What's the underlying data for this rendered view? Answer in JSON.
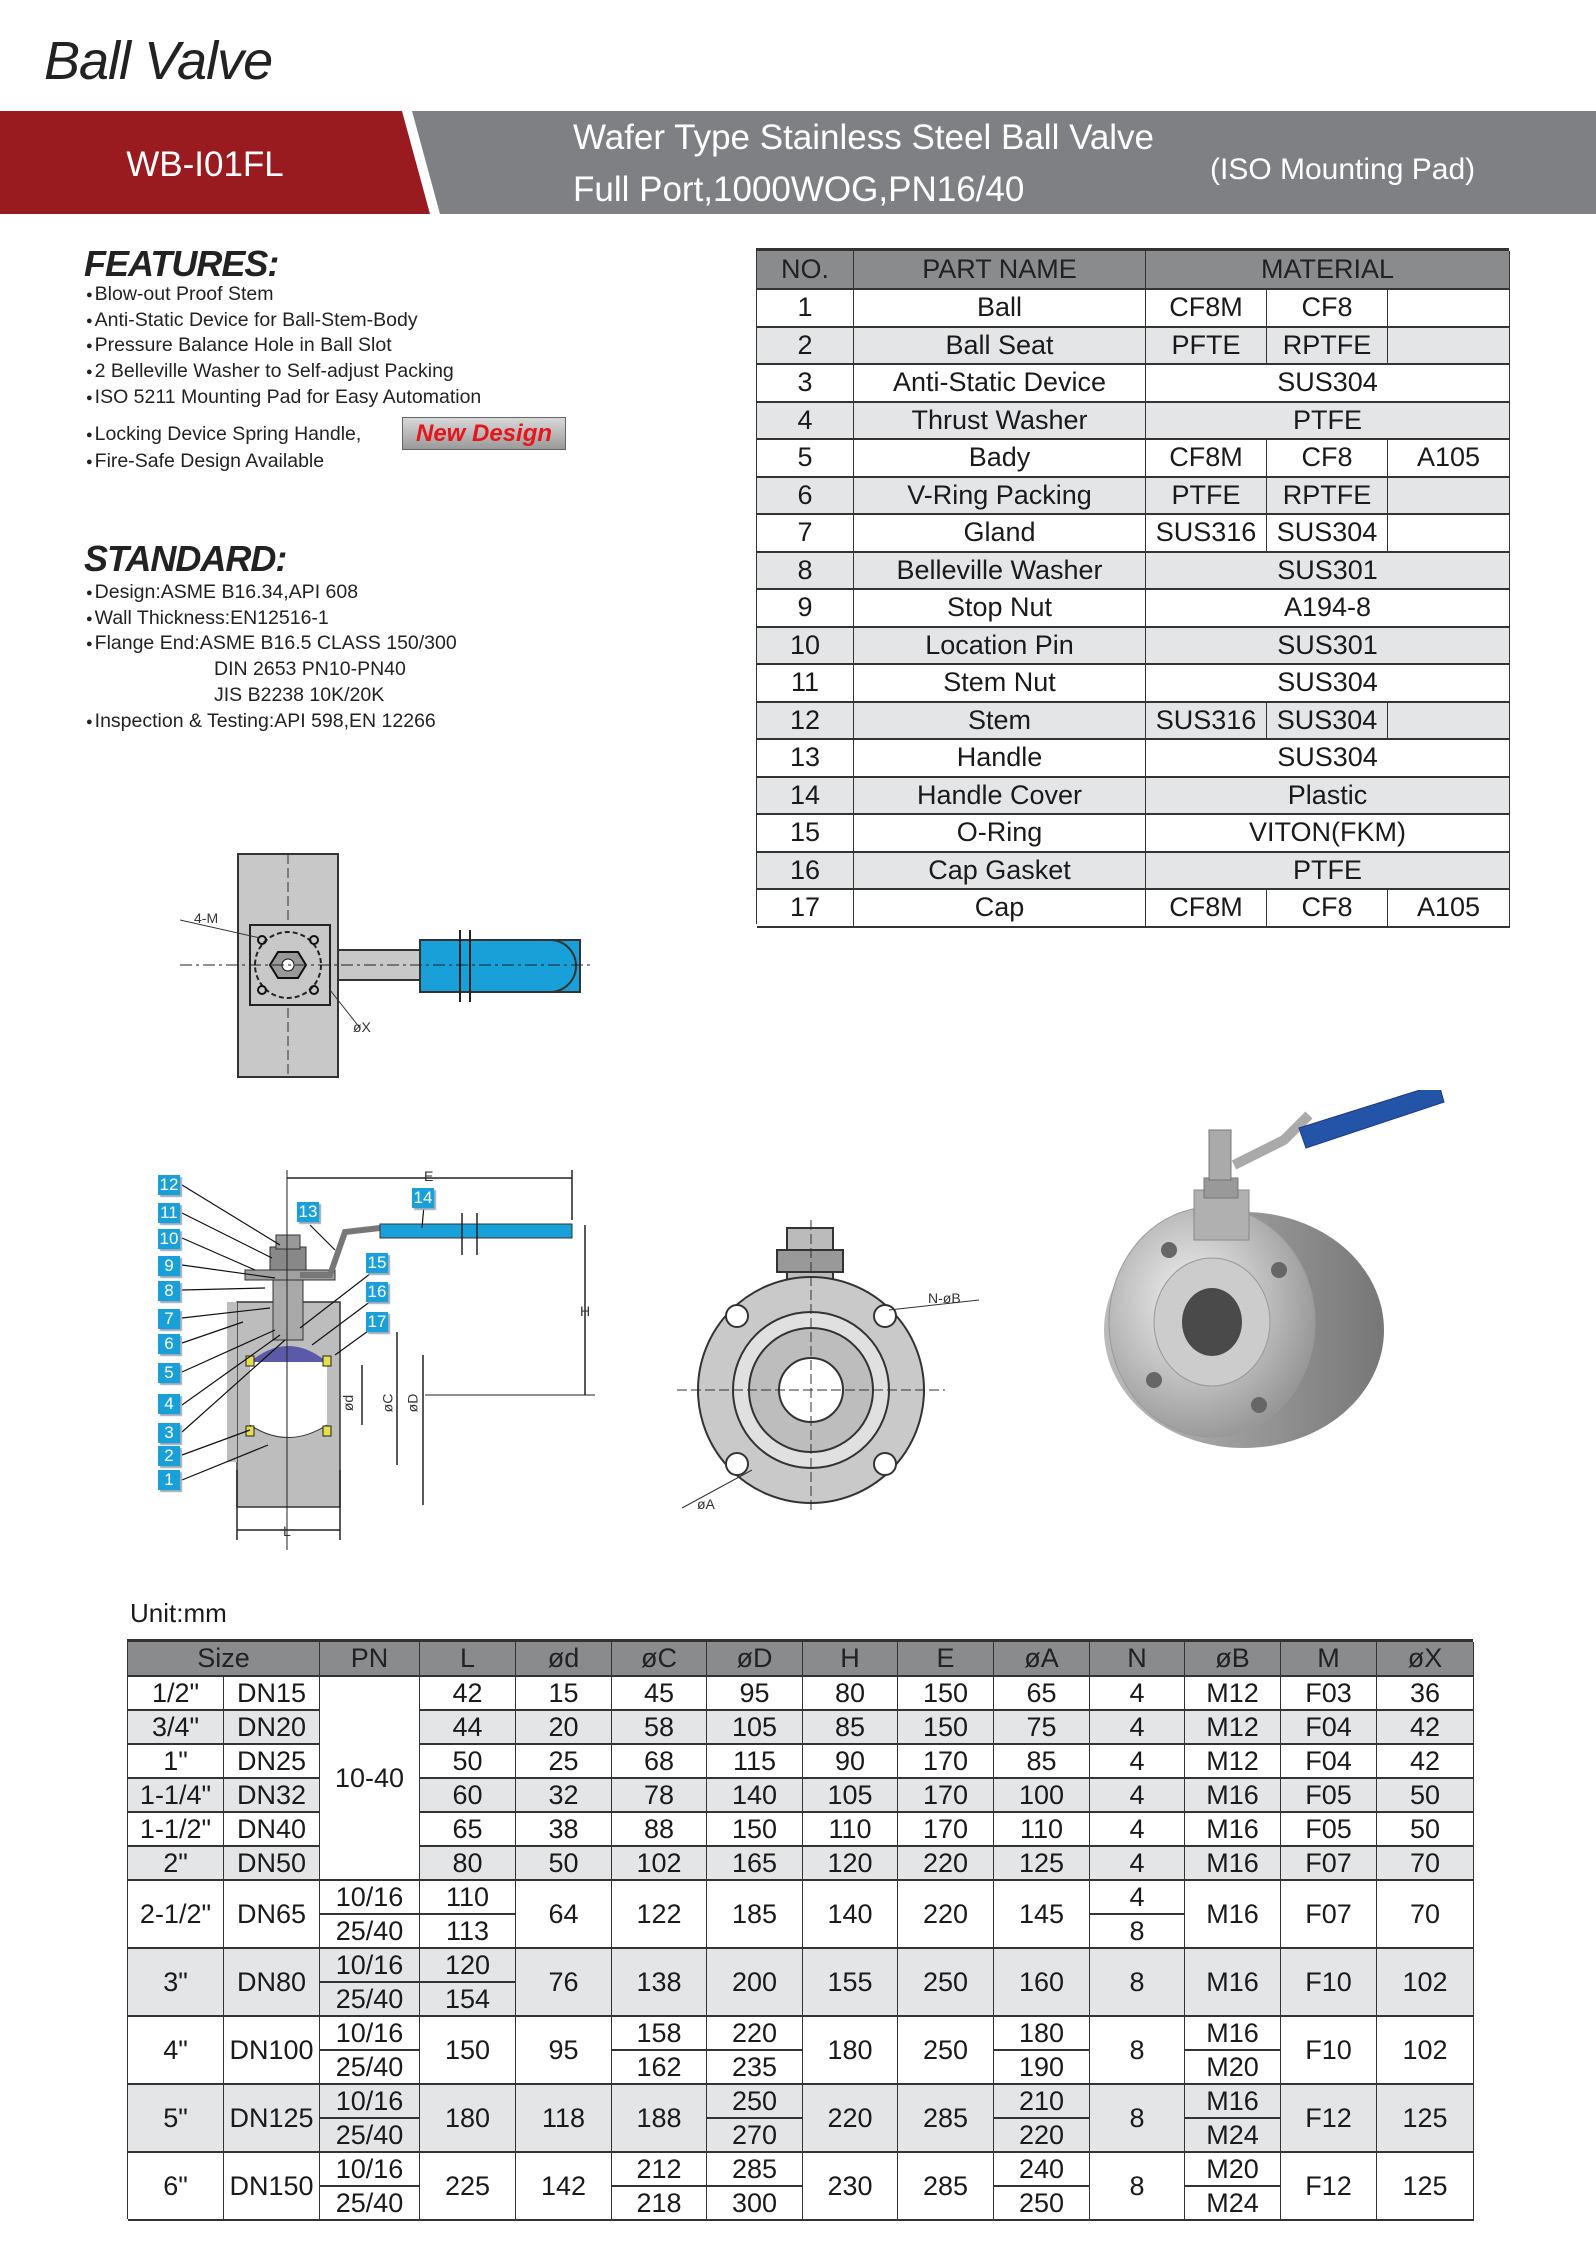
{
  "page_title": "Ball Valve",
  "banner": {
    "model": "WB-I01FL",
    "line1": "Wafer Type Stainless Steel Ball Valve",
    "line2": "Full Port,1000WOG,PN16/40",
    "note": "(ISO Mounting Pad)",
    "colors": {
      "red": "#9a1b1f",
      "gray": "#7e8083"
    }
  },
  "features": {
    "heading": "FEATURES:",
    "items": [
      "Blow-out Proof Stem",
      "Anti-Static Device for Ball-Stem-Body",
      "Pressure Balance Hole in Ball Slot",
      "2 Belleville Washer to Self-adjust Packing",
      "ISO 5211 Mounting Pad for Easy Automation",
      "Locking Device Spring Handle,",
      "Fire-Safe Design Available"
    ],
    "badge": "New Design"
  },
  "standard": {
    "heading": "STANDARD:",
    "items": [
      "Design:ASME B16.34,API 608",
      "Wall Thickness:EN12516-1",
      "Flange End:ASME B16.5 CLASS 150/300",
      "DIN 2653   PN10-PN40",
      "JIS B2238 10K/20K",
      "Inspection & Testing:API 598,EN 12266"
    ]
  },
  "parts_table": {
    "headers": [
      "NO.",
      "PART NAME",
      "MATERIAL"
    ],
    "rows": [
      {
        "no": "1",
        "name": "Ball",
        "material": [
          "CF8M",
          "CF8",
          ""
        ]
      },
      {
        "no": "2",
        "name": "Ball Seat",
        "material": [
          "PFTE",
          "RPTFE",
          ""
        ]
      },
      {
        "no": "3",
        "name": "Anti-Static Device",
        "material": "SUS304"
      },
      {
        "no": "4",
        "name": "Thrust Washer",
        "material": "PTFE"
      },
      {
        "no": "5",
        "name": "Bady",
        "material": [
          "CF8M",
          "CF8",
          "A105"
        ]
      },
      {
        "no": "6",
        "name": "V-Ring Packing",
        "material": [
          "PTFE",
          "RPTFE",
          ""
        ]
      },
      {
        "no": "7",
        "name": "Gland",
        "material": [
          "SUS316",
          "SUS304",
          ""
        ]
      },
      {
        "no": "8",
        "name": "Belleville Washer",
        "material": "SUS301"
      },
      {
        "no": "9",
        "name": "Stop Nut",
        "material": "A194-8"
      },
      {
        "no": "10",
        "name": "Location Pin",
        "material": "SUS301"
      },
      {
        "no": "11",
        "name": "Stem Nut",
        "material": "SUS304"
      },
      {
        "no": "12",
        "name": "Stem",
        "material": [
          "SUS316",
          "SUS304",
          ""
        ]
      },
      {
        "no": "13",
        "name": "Handle",
        "material": "SUS304"
      },
      {
        "no": "14",
        "name": "Handle Cover",
        "material": "Plastic"
      },
      {
        "no": "15",
        "name": "O-Ring",
        "material": "VITON(FKM)"
      },
      {
        "no": "16",
        "name": "Cap Gasket",
        "material": "PTFE"
      },
      {
        "no": "17",
        "name": "Cap",
        "material": [
          "CF8M",
          "CF8",
          "A105"
        ]
      }
    ]
  },
  "drawings": {
    "top_view_labels": {
      "bolt": "4-M",
      "square": "øX"
    },
    "section_labels": {
      "E": "E",
      "H": "H",
      "L": "L",
      "d": "ød",
      "C": "øC",
      "D": "øD"
    },
    "callouts": [
      "1",
      "2",
      "3",
      "4",
      "5",
      "6",
      "7",
      "8",
      "9",
      "10",
      "11",
      "12",
      "13",
      "14",
      "15",
      "16",
      "17"
    ],
    "front_view_labels": {
      "bolt_holes": "N-øB",
      "bolt_circle": "øA"
    },
    "handle_color": "#1aa0d8"
  },
  "dimensions": {
    "unit": "Unit:mm",
    "headers": [
      "Size",
      "PN",
      "L",
      "ød",
      "øC",
      "øD",
      "H",
      "E",
      "øA",
      "N",
      "øB",
      "M",
      "øX"
    ],
    "merged_pn": "10-40",
    "rows": [
      {
        "inch": "1/2\"",
        "dn": "DN15",
        "pn": null,
        "L": "42",
        "d": "15",
        "C": "45",
        "D": "95",
        "H": "80",
        "E": "150",
        "A": "65",
        "N": "4",
        "B": "M12",
        "M": "F03",
        "X": "36"
      },
      {
        "inch": "3/4\"",
        "dn": "DN20",
        "pn": null,
        "L": "44",
        "d": "20",
        "C": "58",
        "D": "105",
        "H": "85",
        "E": "150",
        "A": "75",
        "N": "4",
        "B": "M12",
        "M": "F04",
        "X": "42"
      },
      {
        "inch": "1\"",
        "dn": "DN25",
        "pn": null,
        "L": "50",
        "d": "25",
        "C": "68",
        "D": "115",
        "H": "90",
        "E": "170",
        "A": "85",
        "N": "4",
        "B": "M12",
        "M": "F04",
        "X": "42"
      },
      {
        "inch": "1-1/4\"",
        "dn": "DN32",
        "pn": null,
        "L": "60",
        "d": "32",
        "C": "78",
        "D": "140",
        "H": "105",
        "E": "170",
        "A": "100",
        "N": "4",
        "B": "M16",
        "M": "F05",
        "X": "50"
      },
      {
        "inch": "1-1/2\"",
        "dn": "DN40",
        "pn": null,
        "L": "65",
        "d": "38",
        "C": "88",
        "D": "150",
        "H": "110",
        "E": "170",
        "A": "110",
        "N": "4",
        "B": "M16",
        "M": "F05",
        "X": "50"
      },
      {
        "inch": "2\"",
        "dn": "DN50",
        "pn": null,
        "L": "80",
        "d": "50",
        "C": "102",
        "D": "165",
        "H": "120",
        "E": "220",
        "A": "125",
        "N": "4",
        "B": "M16",
        "M": "F07",
        "X": "70"
      },
      {
        "inch": "2-1/2\"",
        "dn": "DN65",
        "pn": [
          "10/16",
          "25/40"
        ],
        "L": [
          "110",
          "113"
        ],
        "d": "64",
        "C": "122",
        "D": "185",
        "H": "140",
        "E": "220",
        "A": "145",
        "N": [
          "4",
          "8"
        ],
        "B": "M16",
        "M": "F07",
        "X": "70"
      },
      {
        "inch": "3\"",
        "dn": "DN80",
        "pn": [
          "10/16",
          "25/40"
        ],
        "L": [
          "120",
          "154"
        ],
        "d": "76",
        "C": "138",
        "D": "200",
        "H": "155",
        "E": "250",
        "A": "160",
        "N": "8",
        "B": "M16",
        "M": "F10",
        "X": "102"
      },
      {
        "inch": "4\"",
        "dn": "DN100",
        "pn": [
          "10/16",
          "25/40"
        ],
        "L": "150",
        "d": "95",
        "C": [
          "158",
          "162"
        ],
        "D": [
          "220",
          "235"
        ],
        "H": "180",
        "E": "250",
        "A": [
          "180",
          "190"
        ],
        "N": "8",
        "B": [
          "M16",
          "M20"
        ],
        "M": "F10",
        "X": "102"
      },
      {
        "inch": "5\"",
        "dn": "DN125",
        "pn": [
          "10/16",
          "25/40"
        ],
        "L": "180",
        "d": "118",
        "C": "188",
        "D": [
          "250",
          "270"
        ],
        "H": "220",
        "E": "285",
        "A": [
          "210",
          "220"
        ],
        "N": "8",
        "B": [
          "M16",
          "M24"
        ],
        "M": "F12",
        "X": "125"
      },
      {
        "inch": "6\"",
        "dn": "DN150",
        "pn": [
          "10/16",
          "25/40"
        ],
        "L": "225",
        "d": "142",
        "C": [
          "212",
          "218"
        ],
        "D": [
          "285",
          "300"
        ],
        "H": "230",
        "E": "285",
        "A": [
          "240",
          "250"
        ],
        "N": "8",
        "B": [
          "M20",
          "M24"
        ],
        "M": "F12",
        "X": "125"
      }
    ]
  }
}
